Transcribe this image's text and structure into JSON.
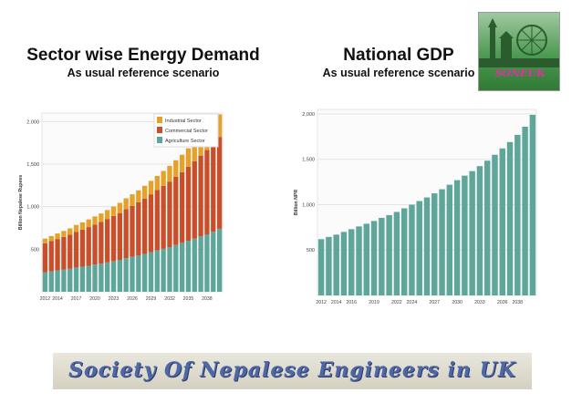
{
  "slide": {
    "left_title": "Sector wise Energy Demand",
    "left_subtitle": "As usual reference scenario",
    "right_title": "National GDP",
    "right_subtitle": "As usual reference scenario",
    "logo_text": "SONEUK",
    "banner_text": "Society Of Nepalese Engineers in UK"
  },
  "colors": {
    "industrial": "#e6a12a",
    "commercial": "#c94f2b",
    "agriculture": "#5fa69a",
    "gdp": "#5fa69a"
  },
  "chart_data": [
    {
      "type": "bar",
      "stacked": true,
      "ylabel": "Billion Nepalese Rupees",
      "xlabel": "",
      "ylim": [
        0,
        2100
      ],
      "yticks": [
        500,
        1000,
        1500,
        2000
      ],
      "ytick_labels": [
        "500",
        "1,000",
        "1,500",
        "2,000"
      ],
      "grid": true,
      "legend_position": "top-right",
      "x": [
        2012,
        2013,
        2014,
        2015,
        2016,
        2017,
        2018,
        2019,
        2020,
        2021,
        2022,
        2023,
        2024,
        2025,
        2026,
        2027,
        2028,
        2029,
        2030,
        2031,
        2032,
        2033,
        2034,
        2035,
        2036,
        2037,
        2038,
        2039,
        2040
      ],
      "xtick_labels": [
        "2012",
        "2014",
        "2017",
        "2020",
        "2023",
        "2026",
        "2029",
        "2032",
        "2035",
        "2038"
      ],
      "series": [
        {
          "name": "Agriculture Sector",
          "color_key": "agriculture",
          "values": [
            230,
            240,
            250,
            260,
            270,
            285,
            295,
            305,
            320,
            330,
            345,
            360,
            375,
            395,
            410,
            425,
            445,
            465,
            485,
            505,
            525,
            550,
            575,
            600,
            625,
            650,
            675,
            705,
            740
          ]
        },
        {
          "name": "Commercial Sector",
          "color_key": "commercial",
          "values": [
            340,
            355,
            370,
            385,
            400,
            420,
            435,
            455,
            470,
            490,
            510,
            530,
            550,
            575,
            600,
            625,
            650,
            680,
            710,
            740,
            770,
            800,
            830,
            870,
            910,
            950,
            990,
            1040,
            1080
          ]
        },
        {
          "name": "Industrial Sector",
          "color_key": "industrial",
          "values": [
            55,
            60,
            65,
            70,
            75,
            80,
            85,
            90,
            95,
            100,
            105,
            112,
            120,
            128,
            135,
            142,
            150,
            158,
            166,
            175,
            185,
            195,
            205,
            215,
            225,
            235,
            245,
            255,
            265
          ]
        }
      ]
    },
    {
      "type": "bar",
      "ylabel": "Billion NPR",
      "xlabel": "",
      "ylim": [
        0,
        2050
      ],
      "yticks": [
        500,
        1000,
        1500,
        2000
      ],
      "ytick_labels": [
        "500",
        "1,000",
        "1,500",
        "2,000"
      ],
      "grid": true,
      "x": [
        2012,
        2013,
        2014,
        2015,
        2016,
        2017,
        2018,
        2019,
        2020,
        2021,
        2022,
        2023,
        2024,
        2025,
        2026,
        2027,
        2028,
        2029,
        2030,
        2031,
        2032,
        2033,
        2034,
        2035,
        2036,
        2037,
        2038,
        2039,
        2040
      ],
      "xtick_labels": [
        "2012",
        "2014",
        "2016",
        "2019",
        "2022",
        "2024",
        "2027",
        "2030",
        "2033",
        "2036",
        "2038"
      ],
      "series": [
        {
          "color_key": "gdp",
          "values": [
            620,
            645,
            670,
            700,
            730,
            760,
            790,
            820,
            855,
            885,
            920,
            960,
            1000,
            1040,
            1080,
            1125,
            1170,
            1220,
            1270,
            1320,
            1370,
            1425,
            1485,
            1550,
            1620,
            1690,
            1770,
            1860,
            1990
          ]
        }
      ]
    }
  ]
}
